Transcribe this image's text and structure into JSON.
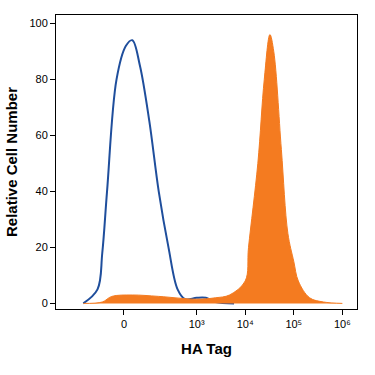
{
  "chart_data": {
    "type": "line",
    "x_label": "HA Tag",
    "y_label": "Relative Cell Number",
    "log": "x",
    "grid": false,
    "xlim": [
      -800,
      2000000
    ],
    "xticks": [
      0,
      {
        "value": 1000,
        "label": "10³"
      },
      {
        "value": 10000,
        "label": "10⁴"
      },
      {
        "value": 100000,
        "label": "10⁵"
      },
      {
        "value": 1000000,
        "label": "10⁶"
      }
    ],
    "ylim": [
      -2,
      103
    ],
    "yticks": [
      0,
      20,
      40,
      60,
      80,
      100
    ],
    "series": [
      {
        "type": "line",
        "color": "#1f4e9c",
        "x": [
          -215,
          -103,
          -78,
          -57,
          -23,
          6,
          26,
          53,
          97,
          160,
          260,
          404,
          580,
          1000,
          1550,
          2430,
          5900
        ],
        "values": [
          0,
          5,
          18,
          40,
          80,
          92,
          94,
          85,
          65,
          40,
          20,
          5,
          1.5,
          2,
          2,
          0.5,
          0
        ]
      },
      {
        "type": "area",
        "color": "#f47b20",
        "x": [
          -215,
          -78,
          -39,
          26,
          160,
          1000,
          2430,
          4750,
          10000,
          11700,
          18200,
          24700,
          32300,
          38700,
          55500,
          75600,
          100000,
          124000,
          212000,
          410000,
          1000000
        ],
        "values": [
          0,
          0.5,
          2.5,
          3,
          2.5,
          1.5,
          2,
          3,
          8,
          20,
          50,
          80,
          96,
          90,
          55,
          25,
          15,
          8,
          2,
          0.5,
          0
        ]
      }
    ]
  }
}
